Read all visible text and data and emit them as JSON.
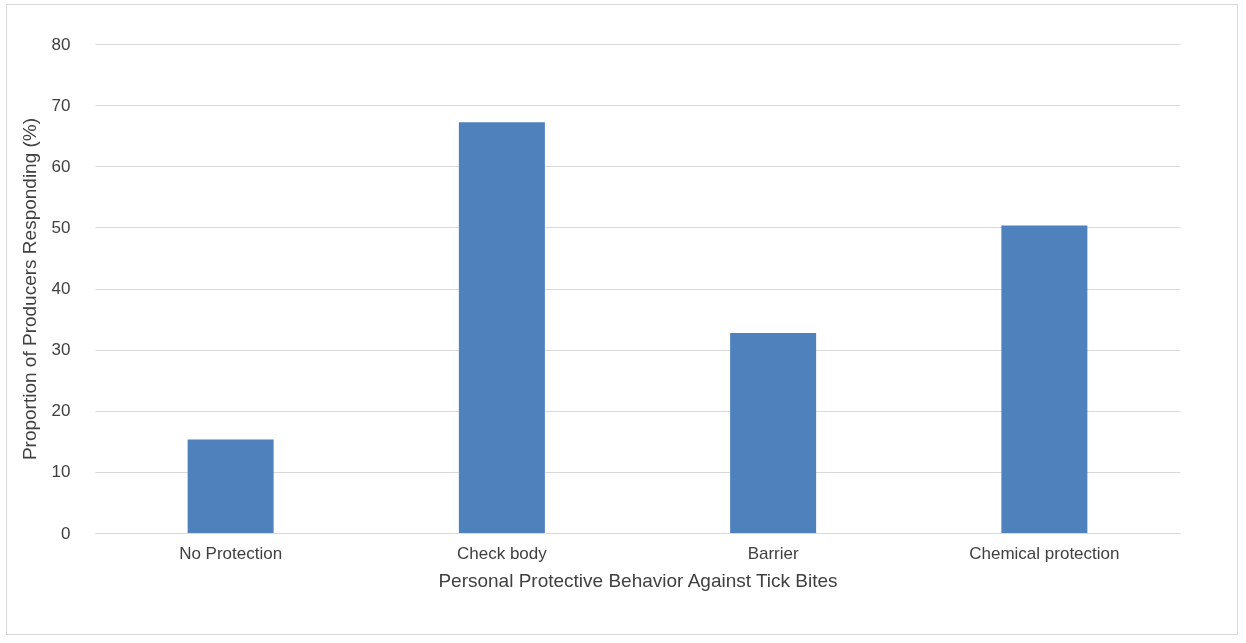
{
  "chart_data": {
    "type": "bar",
    "xlabel": "Personal Protective Behavior Against Tick Bites",
    "ylabel": "Proportion of Producers Responding (%)",
    "categories": [
      "No Protection",
      "Check body",
      "Barrier",
      "Chemical protection"
    ],
    "values": [
      15.3,
      67.2,
      32.7,
      50.3
    ],
    "color": "#4f81bd",
    "ylim": [
      0,
      80
    ],
    "yticks": [
      0,
      10,
      20,
      30,
      40,
      50,
      60,
      70,
      80
    ],
    "grid": "y"
  }
}
